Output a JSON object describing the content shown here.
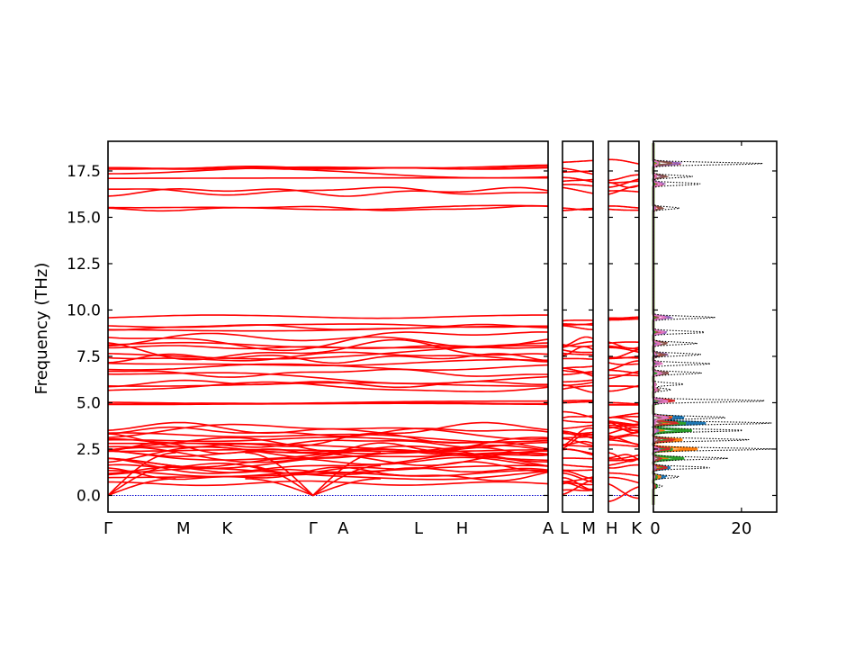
{
  "chart_data": {
    "type": "line",
    "title": "",
    "ylabel": "Frequency (THz)",
    "ylim": [
      -0.9,
      19.1
    ],
    "y_ticks": [
      0.0,
      2.5,
      5.0,
      7.5,
      10.0,
      12.5,
      15.0,
      17.5
    ],
    "y_tick_labels": [
      "0.0",
      "2.5",
      "5.0",
      "7.5",
      "10.0",
      "12.5",
      "15.0",
      "17.5"
    ],
    "band_color": "#ff0000",
    "zero_line_color": "#0000cc",
    "band_segments": [
      {
        "labels": [
          "Γ",
          "M",
          "K",
          "Γ",
          "A",
          "L",
          "H",
          "A"
        ],
        "label_positions": [
          0.0,
          0.5,
          0.79,
          1.36,
          1.56,
          2.06,
          2.35,
          2.92
        ],
        "x_max": 2.92
      },
      {
        "labels": [
          "L",
          "M"
        ],
        "label_positions": [
          0.0,
          0.5
        ],
        "x_max": 0.5
      },
      {
        "labels": [
          "H",
          "K"
        ],
        "label_positions": [
          0.0,
          0.5
        ],
        "x_max": 0.5
      }
    ],
    "dos": {
      "xlim": [
        0,
        28
      ],
      "x_ticks": [
        0,
        20
      ],
      "x_tick_labels": [
        "0",
        "20"
      ],
      "total_color": "#000000",
      "total_style": "dotted",
      "projection_colors": [
        "#1f77b4",
        "#ff7f0e",
        "#2ca02c",
        "#d62728",
        "#9467bd",
        "#8c564b",
        "#e377c2"
      ],
      "total_peaks": [
        {
          "f": 0.5,
          "dos": 2
        },
        {
          "f": 1.0,
          "dos": 6
        },
        {
          "f": 1.5,
          "dos": 13
        },
        {
          "f": 2.0,
          "dos": 17
        },
        {
          "f": 2.5,
          "dos": 27
        },
        {
          "f": 3.0,
          "dos": 22
        },
        {
          "f": 3.5,
          "dos": 21
        },
        {
          "f": 3.9,
          "dos": 27
        },
        {
          "f": 4.2,
          "dos": 17
        },
        {
          "f": 5.1,
          "dos": 26
        },
        {
          "f": 5.7,
          "dos": 4
        },
        {
          "f": 6.0,
          "dos": 7
        },
        {
          "f": 6.6,
          "dos": 11
        },
        {
          "f": 7.1,
          "dos": 13
        },
        {
          "f": 7.6,
          "dos": 11
        },
        {
          "f": 8.2,
          "dos": 10
        },
        {
          "f": 8.8,
          "dos": 12
        },
        {
          "f": 9.6,
          "dos": 14
        },
        {
          "f": 15.5,
          "dos": 6
        },
        {
          "f": 16.8,
          "dos": 11
        },
        {
          "f": 17.2,
          "dos": 9
        },
        {
          "f": 17.9,
          "dos": 25
        }
      ]
    }
  }
}
